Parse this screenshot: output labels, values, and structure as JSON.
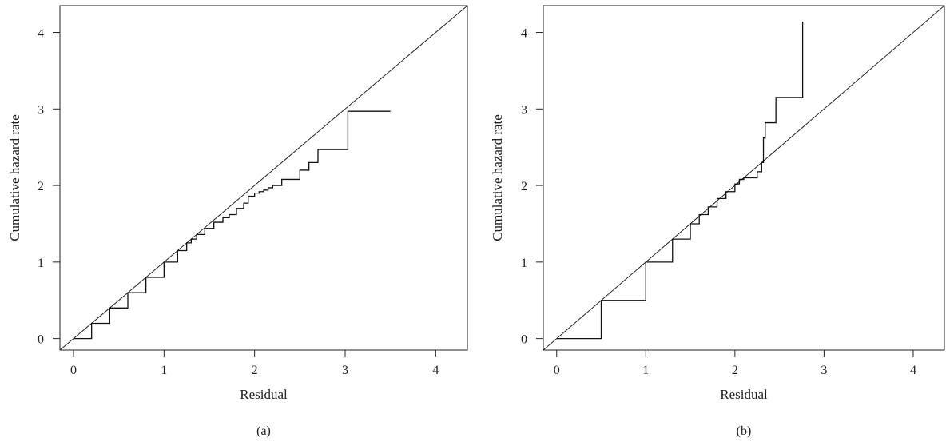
{
  "chart_data": [
    {
      "type": "line",
      "caption": "(a)",
      "xlabel": "Residual",
      "ylabel": "Cumulative hazard rate",
      "xlim": [
        -0.15,
        4.35
      ],
      "ylim": [
        -0.15,
        4.35
      ],
      "xticks": [
        0,
        1,
        2,
        3,
        4
      ],
      "yticks": [
        0,
        1,
        2,
        3,
        4
      ],
      "grid": false,
      "reference_line": {
        "slope": 1,
        "intercept": 0
      },
      "series": [
        {
          "style": "step",
          "x": [
            0,
            0.2,
            0.4,
            0.6,
            0.8,
            1.0,
            1.15,
            1.25,
            1.3,
            1.36,
            1.45,
            1.55,
            1.65,
            1.72,
            1.8,
            1.88,
            1.93,
            2.0,
            2.05,
            2.1,
            2.15,
            2.2,
            2.3,
            2.35,
            2.45,
            2.5,
            2.6,
            2.7,
            3.03,
            3.5
          ],
          "y": [
            0,
            0.2,
            0.4,
            0.6,
            0.8,
            1.0,
            1.15,
            1.25,
            1.3,
            1.36,
            1.44,
            1.52,
            1.58,
            1.62,
            1.7,
            1.77,
            1.86,
            1.9,
            1.92,
            1.94,
            1.97,
            2.0,
            2.08,
            2.08,
            2.08,
            2.2,
            2.3,
            2.47,
            2.97,
            2.97
          ]
        }
      ]
    },
    {
      "type": "line",
      "caption": "(b)",
      "xlabel": "Residual",
      "ylabel": "Cumulative hazard rate",
      "xlim": [
        -0.15,
        4.35
      ],
      "ylim": [
        -0.15,
        4.35
      ],
      "xticks": [
        0,
        1,
        2,
        3,
        4
      ],
      "yticks": [
        0,
        1,
        2,
        3,
        4
      ],
      "grid": false,
      "reference_line": {
        "slope": 1,
        "intercept": 0
      },
      "series": [
        {
          "style": "step",
          "x": [
            0,
            0.5,
            1.0,
            1.3,
            1.5,
            1.6,
            1.7,
            1.8,
            1.9,
            2.0,
            2.05,
            2.1,
            2.15,
            2.25,
            2.3,
            2.32,
            2.34,
            2.46,
            2.75,
            2.76
          ],
          "y": [
            0,
            0.5,
            1.0,
            1.3,
            1.5,
            1.62,
            1.72,
            1.83,
            1.92,
            2.02,
            2.08,
            2.1,
            2.1,
            2.18,
            2.3,
            2.62,
            2.82,
            3.15,
            3.15,
            4.14
          ]
        }
      ]
    }
  ]
}
